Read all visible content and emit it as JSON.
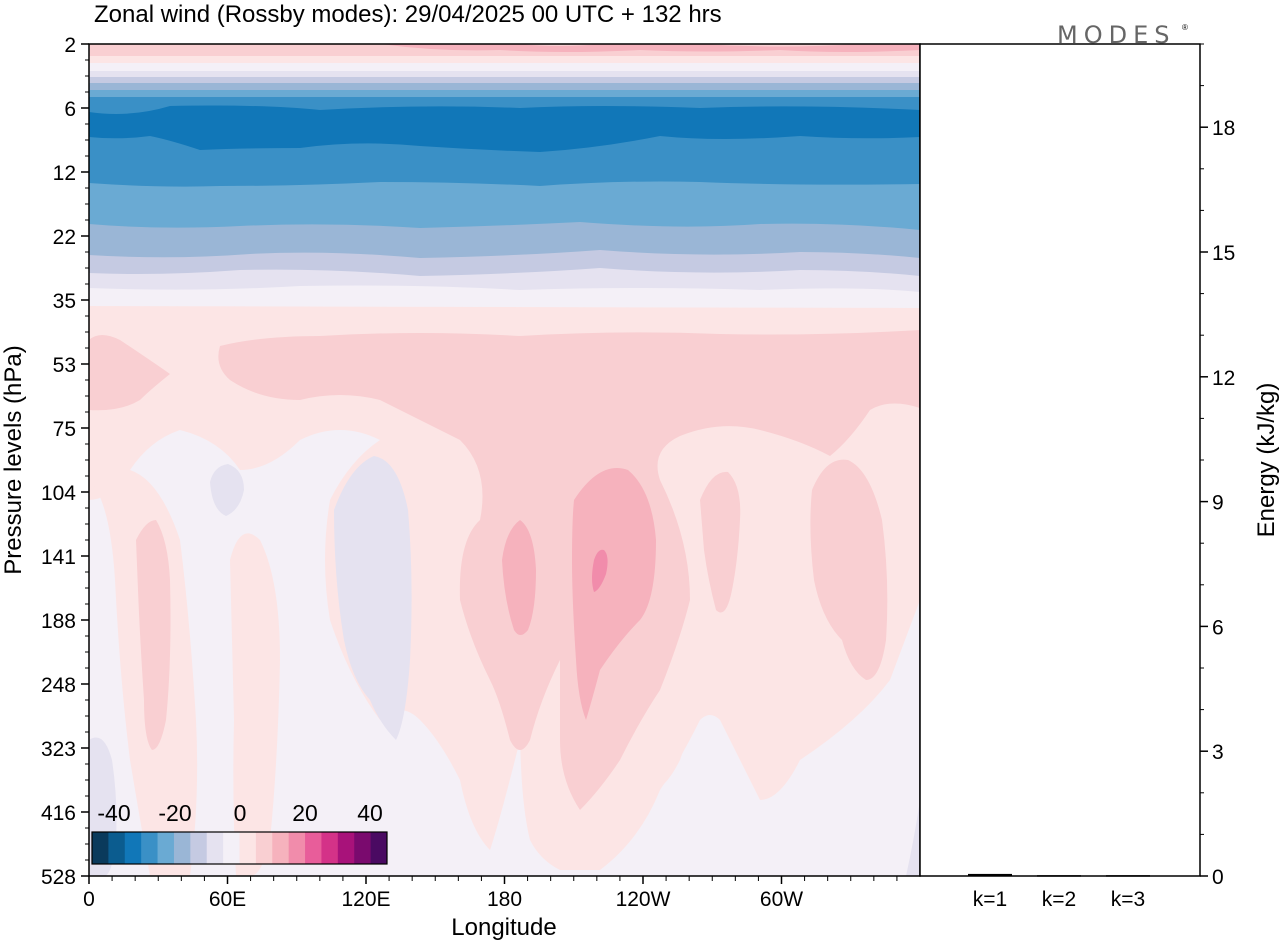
{
  "chart_data": {
    "type": "heatmap",
    "title": "Zonal wind (Rossby modes):  29/04/2025  00 UTC  + 132 hrs",
    "logo": "MODES",
    "xlabel": "Longitude",
    "ylabel": "Pressure levels (hPa)",
    "ylabel_right": "Energy (kJ/kg)",
    "x_ticks": [
      "0",
      "60E",
      "120E",
      "180",
      "120W",
      "60W"
    ],
    "y_ticks": [
      "2",
      "6",
      "12",
      "22",
      "35",
      "53",
      "75",
      "104",
      "141",
      "188",
      "248",
      "323",
      "416",
      "528"
    ],
    "energy_ticks": [
      "0",
      "3",
      "6",
      "9",
      "12",
      "15",
      "18"
    ],
    "energy_ylim": [
      0,
      20
    ],
    "energy_categories": [
      "k=1",
      "k=2",
      "k=3"
    ],
    "energy_values": [
      0.05,
      0.02,
      0.02
    ],
    "colorbar_labels": [
      "-40",
      "-20",
      "0",
      "20",
      "40"
    ],
    "colorbar_colors": [
      "#0a3a5c",
      "#0b5c8f",
      "#1177b8",
      "#3a90c6",
      "#6aaad3",
      "#9ab6d6",
      "#c5cae2",
      "#e5e2f0",
      "#f4f0f7",
      "#fce5e5",
      "#f9cfd2",
      "#f6b2bd",
      "#f18cab",
      "#e85d9a",
      "#d43288",
      "#a8127a",
      "#7a0a6e",
      "#4a0a62"
    ],
    "wind_rows": [
      {
        "level": 2,
        "values": [
          10,
          14,
          12,
          10,
          12,
          14,
          12
        ]
      },
      {
        "level": 3,
        "values": [
          1,
          2,
          2,
          1,
          2,
          2,
          1
        ]
      },
      {
        "level": 4,
        "values": [
          -12,
          -12,
          -14,
          -13,
          -12,
          -12,
          -12
        ]
      },
      {
        "level": 5,
        "values": [
          -26,
          -26,
          -28,
          -28,
          -26,
          -26,
          -26
        ]
      },
      {
        "level": 6,
        "values": [
          -32,
          -30,
          -34,
          -34,
          -33,
          -33,
          -33
        ]
      },
      {
        "level": 9,
        "values": [
          -30,
          -28,
          -30,
          -32,
          -31,
          -30,
          -31
        ]
      },
      {
        "level": 12,
        "values": [
          -26,
          -26,
          -27,
          -27,
          -27,
          -27,
          -26
        ]
      },
      {
        "level": 17,
        "values": [
          -20,
          -20,
          -21,
          -21,
          -21,
          -20,
          -20
        ]
      },
      {
        "level": 22,
        "values": [
          -14,
          -14,
          -15,
          -15,
          -15,
          -14,
          -14
        ]
      },
      {
        "level": 28,
        "values": [
          -8,
          -8,
          -8,
          -9,
          -9,
          -8,
          -8
        ]
      },
      {
        "level": 35,
        "values": [
          -2,
          -2,
          -2,
          -2,
          -2,
          -2,
          -2
        ]
      },
      {
        "level": 44,
        "values": [
          3,
          3,
          3,
          3,
          3,
          3,
          3
        ]
      },
      {
        "level": 53,
        "values": [
          6,
          4,
          7,
          8,
          8,
          7,
          7
        ]
      },
      {
        "level": 75,
        "values": [
          3,
          1,
          3,
          6,
          6,
          3,
          3
        ]
      },
      {
        "level": 104,
        "values": [
          0,
          -3,
          0,
          4,
          7,
          2,
          4
        ]
      },
      {
        "level": 141,
        "values": [
          2,
          -4,
          0,
          9,
          16,
          4,
          6
        ]
      },
      {
        "level": 188,
        "values": [
          2,
          -3,
          0,
          7,
          11,
          3,
          5
        ]
      },
      {
        "level": 248,
        "values": [
          1,
          -2,
          0,
          5,
          7,
          2,
          2
        ]
      },
      {
        "level": 323,
        "values": [
          0,
          -1,
          0,
          3,
          4,
          1,
          0
        ]
      },
      {
        "level": 416,
        "values": [
          0,
          0,
          0,
          2,
          2,
          0,
          0
        ]
      },
      {
        "level": 528,
        "values": [
          0,
          0,
          0,
          1,
          1,
          0,
          0
        ]
      }
    ]
  }
}
